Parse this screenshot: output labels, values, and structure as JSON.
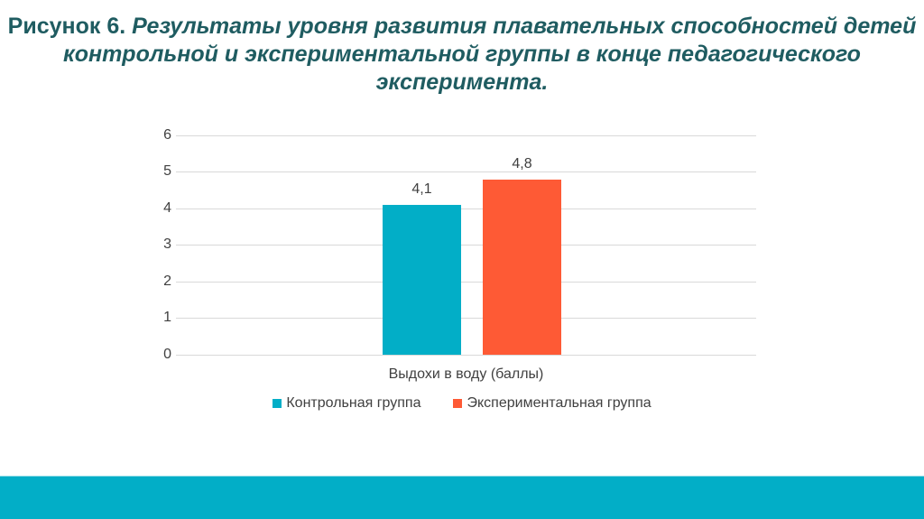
{
  "title": {
    "lead": "Рисунок 6. ",
    "rest": "Результаты уровня развития плавательных способностей детей контрольной и экспериментальной группы в конце педагогического эксперимента."
  },
  "colors": {
    "control": "#02aec7",
    "experimental": "#fe5a35",
    "title": "#1f5c61",
    "footer": "#02aec7"
  },
  "chart_data": {
    "type": "bar",
    "title": "Рисунок 6. Результаты уровня развития плавательных способностей детей контрольной и экспериментальной группы в конце педагогического эксперимента.",
    "categories": [
      "Выдохи в воду (баллы)"
    ],
    "series": [
      {
        "name": "Контрольная группа",
        "values": [
          4.1
        ],
        "label": "4,1",
        "color": "#02aec7"
      },
      {
        "name": "Экспериментальная группа",
        "values": [
          4.8
        ],
        "label": "4,8",
        "color": "#fe5a35"
      }
    ],
    "xlabel": "",
    "ylabel": "",
    "ylim": [
      0,
      6
    ],
    "yticks": [
      "0",
      "1",
      "2",
      "3",
      "4",
      "5",
      "6"
    ],
    "grid": true,
    "legend_position": "bottom"
  }
}
